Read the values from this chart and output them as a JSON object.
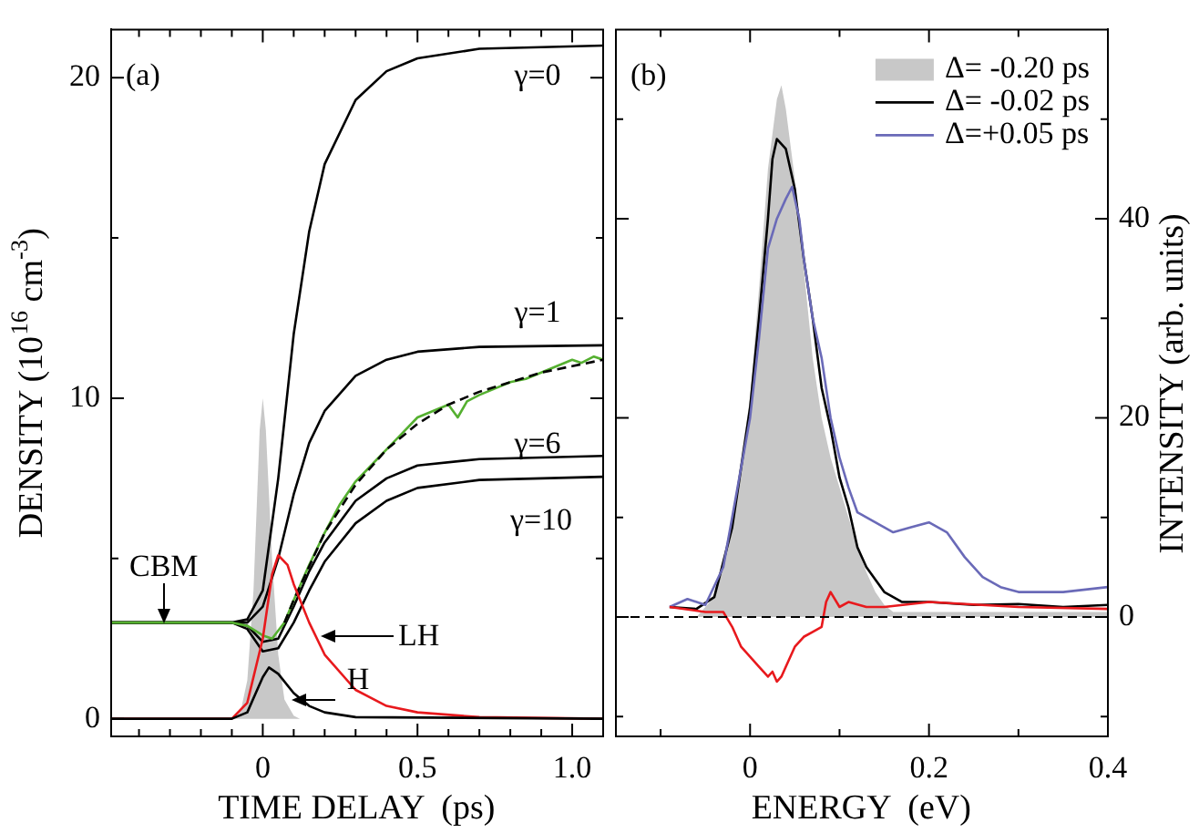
{
  "chart_data": [
    {
      "type": "line",
      "xlabel": "TIME DELAY  (ps)",
      "ylabel": "DENSITY (10$^{16}$ cm$^{-3}$)",
      "xlim": [
        -0.49,
        1.1
      ],
      "xticks": [
        {
          "value": -0.4,
          "label": null
        },
        {
          "value": -0.3,
          "label": null
        },
        {
          "value": -0.2,
          "label": null
        },
        {
          "value": -0.1,
          "label": null
        },
        0,
        {
          "value": 0.1,
          "label": null
        },
        {
          "value": 0.2,
          "label": null
        },
        {
          "value": 0.3,
          "label": null
        },
        {
          "value": 0.4,
          "label": null
        },
        0.5,
        {
          "value": 0.6,
          "label": null
        },
        {
          "value": 0.7,
          "label": null
        },
        {
          "value": 0.8,
          "label": null
        },
        {
          "value": 0.9,
          "label": null
        },
        {
          "value": 1,
          "label": "1.0"
        }
      ],
      "ylim": [
        -0.55,
        21.5
      ],
      "yticks": [
        0,
        {
          "value": 5,
          "label": null
        },
        10,
        {
          "value": 15,
          "label": null
        },
        20
      ],
      "legend": false,
      "annotations": [
        "(a)",
        "γ=0",
        "γ=1",
        "γ=6",
        "γ=10",
        {
          "text": "CBM",
          "x": -0.32,
          "y": 3
        },
        {
          "text": "LH",
          "x": 0.19,
          "y": 2.55
        },
        {
          "text": "H",
          "x": 0.095,
          "y": 0.6
        }
      ],
      "series": [
        {
          "type": "area",
          "color": "#c8c8c8",
          "x": [
            -0.1,
            -0.07,
            -0.05,
            -0.03,
            -0.02,
            -0.01,
            0,
            0.01,
            0.02,
            0.03,
            0.05,
            0.07,
            0.1,
            0.12
          ],
          "values": [
            0,
            0.3,
            1.2,
            4,
            6.5,
            9,
            10,
            9,
            7,
            5,
            2,
            0.6,
            0.1,
            0
          ]
        },
        {
          "color": "#000000",
          "x": [
            -0.49,
            -0.1,
            -0.05,
            0,
            0.05,
            0.1,
            0.15,
            0.2,
            0.3,
            0.4,
            0.5,
            0.7,
            1.1
          ],
          "values": [
            3,
            3,
            3.1,
            4,
            7.5,
            12,
            15.2,
            17.3,
            19.3,
            20.2,
            20.6,
            20.9,
            21
          ]
        },
        {
          "color": "#000000",
          "x": [
            -0.49,
            -0.1,
            -0.05,
            0,
            0.05,
            0.1,
            0.15,
            0.2,
            0.3,
            0.4,
            0.5,
            0.7,
            1.1
          ],
          "values": [
            3,
            3,
            3,
            3.5,
            5,
            7,
            8.6,
            9.6,
            10.7,
            11.2,
            11.45,
            11.6,
            11.65
          ]
        },
        {
          "color": "#000000",
          "x": [
            -0.49,
            -0.1,
            -0.05,
            0,
            0.05,
            0.1,
            0.15,
            0.2,
            0.3,
            0.4,
            0.5,
            0.7,
            1.1
          ],
          "values": [
            3,
            3,
            2.9,
            2.4,
            2.5,
            3.5,
            4.6,
            5.5,
            6.8,
            7.5,
            7.9,
            8.1,
            8.2
          ]
        },
        {
          "color": "#000000",
          "x": [
            -0.49,
            -0.1,
            -0.05,
            0,
            0.05,
            0.1,
            0.15,
            0.2,
            0.3,
            0.4,
            0.5,
            0.7,
            1.1
          ],
          "values": [
            3,
            3,
            2.8,
            2.1,
            2.2,
            3,
            4,
            4.9,
            6.1,
            6.8,
            7.2,
            7.45,
            7.55
          ]
        },
        {
          "color": "#55b030",
          "x": [
            -0.49,
            -0.3,
            -0.1,
            -0.05,
            0,
            0.03,
            0.07,
            0.1,
            0.15,
            0.2,
            0.25,
            0.3,
            0.35,
            0.4,
            0.45,
            0.5,
            0.55,
            0.6,
            0.63,
            0.66,
            0.7,
            0.75,
            0.8,
            0.85,
            0.9,
            0.95,
            1,
            1.03,
            1.07,
            1.1
          ],
          "values": [
            3,
            3,
            3,
            2.9,
            2.6,
            2.5,
            3,
            3.7,
            4.8,
            5.8,
            6.7,
            7.4,
            7.9,
            8.4,
            8.9,
            9.4,
            9.6,
            9.8,
            9.4,
            9.9,
            10.1,
            10.3,
            10.5,
            10.6,
            10.8,
            11,
            11.2,
            11.1,
            11.3,
            11.2
          ]
        },
        {
          "color": "#000000",
          "line_style": "dashed",
          "x": [
            0.07,
            0.1,
            0.2,
            0.3,
            0.4,
            0.5,
            0.6,
            0.7,
            0.8,
            0.9,
            1,
            1.1
          ],
          "values": [
            3,
            3.7,
            5.8,
            7.3,
            8.4,
            9.2,
            9.8,
            10.2,
            10.5,
            10.8,
            11,
            11.2
          ]
        },
        {
          "color": "#e8191d",
          "x": [
            -0.49,
            -0.1,
            -0.05,
            0,
            0.03,
            0.05,
            0.08,
            0.1,
            0.15,
            0.2,
            0.3,
            0.4,
            0.5,
            0.7,
            1.1
          ],
          "values": [
            0,
            0,
            0.5,
            2.5,
            4.5,
            5.1,
            4.8,
            4.2,
            3,
            2,
            0.9,
            0.4,
            0.2,
            0.05,
            0
          ]
        },
        {
          "color": "#000000",
          "x": [
            -0.49,
            -0.1,
            -0.05,
            0,
            0.02,
            0.05,
            0.1,
            0.15,
            0.2,
            0.3,
            1.1
          ],
          "values": [
            0,
            0,
            0.2,
            1.3,
            1.6,
            1.4,
            0.8,
            0.4,
            0.2,
            0.05,
            0
          ]
        }
      ]
    },
    {
      "type": "line",
      "xlabel": "ENERGY  (eV)",
      "y2label": "INTENSITY (arb. units)",
      "xlim": [
        -0.15,
        0.4
      ],
      "xticks": [
        {
          "value": -0.1,
          "label": null
        },
        0,
        {
          "value": 0.1,
          "label": null
        },
        0.2,
        {
          "value": 0.3,
          "label": null
        },
        0.4
      ],
      "y2lim": [
        -12,
        59
      ],
      "y2ticks": [
        {
          "value": -10,
          "label": null
        },
        0,
        {
          "value": 10,
          "label": null
        },
        20,
        {
          "value": 30,
          "label": null
        },
        40,
        {
          "value": 50,
          "label": null
        }
      ],
      "legend": "top right",
      "annotations": [
        "(b)"
      ],
      "ref_lines": [
        {
          "axis": "y2",
          "value": 0,
          "color": "#000000",
          "line_style": "dashed"
        }
      ],
      "series": [
        {
          "type": "area",
          "axis": "y2",
          "name": "Δ= -0.20 ps",
          "color": "#c8c8c8",
          "x": [
            -0.06,
            -0.04,
            -0.02,
            0,
            0.01,
            0.02,
            0.03,
            0.035,
            0.04,
            0.05,
            0.06,
            0.07,
            0.08,
            0.09,
            0.1,
            0.11,
            0.12,
            0.13,
            0.14,
            0.15,
            0.16,
            0.2,
            0.3,
            0.4
          ],
          "values": [
            0,
            2,
            10,
            22,
            33,
            45,
            52,
            53.4,
            51,
            44,
            35,
            26,
            20,
            16,
            13,
            10,
            7,
            4.5,
            2.5,
            1.2,
            0.5,
            0.5,
            0.5,
            0.5
          ]
        },
        {
          "axis": "y2",
          "name": "Δ= -0.02 ps",
          "color": "#000000",
          "x": [
            -0.09,
            -0.06,
            -0.04,
            -0.02,
            0,
            0.01,
            0.02,
            0.025,
            0.03,
            0.04,
            0.05,
            0.06,
            0.07,
            0.08,
            0.09,
            0.1,
            0.11,
            0.12,
            0.13,
            0.15,
            0.17,
            0.2,
            0.25,
            0.3,
            0.35,
            0.4
          ],
          "values": [
            1,
            0.8,
            2,
            9,
            21,
            30,
            40,
            46,
            48,
            47,
            43,
            36,
            30,
            23,
            19,
            14,
            11,
            7,
            5,
            2.5,
            1.5,
            1.5,
            1.2,
            1.3,
            1,
            1.2
          ]
        },
        {
          "axis": "y2",
          "name": "Δ=+0.05 ps",
          "color": "#6a6ab8",
          "x": [
            -0.09,
            -0.07,
            -0.05,
            -0.03,
            -0.01,
            0,
            0.01,
            0.02,
            0.03,
            0.04,
            0.047,
            0.055,
            0.06,
            0.07,
            0.075,
            0.08,
            0.09,
            0.1,
            0.11,
            0.12,
            0.14,
            0.16,
            0.18,
            0.2,
            0.22,
            0.24,
            0.26,
            0.28,
            0.3,
            0.35,
            0.4
          ],
          "values": [
            1,
            1.8,
            1.2,
            5,
            15,
            20,
            28,
            37,
            40,
            42,
            43.2,
            40,
            36,
            30,
            28,
            26,
            20,
            16,
            13,
            10.5,
            9.5,
            8.5,
            9,
            9.5,
            8.5,
            6,
            4,
            3,
            2.5,
            2.5,
            3
          ]
        },
        {
          "axis": "y2",
          "color": "#e8191d",
          "x": [
            -0.09,
            -0.05,
            -0.03,
            -0.02,
            -0.01,
            0,
            0.01,
            0.02,
            0.025,
            0.03,
            0.035,
            0.04,
            0.05,
            0.06,
            0.07,
            0.08,
            0.085,
            0.09,
            0.1,
            0.11,
            0.13,
            0.15,
            0.2,
            0.3,
            0.4
          ],
          "values": [
            1,
            0.5,
            0.5,
            -1,
            -3,
            -4,
            -5,
            -6,
            -5.5,
            -6.5,
            -6,
            -5,
            -3,
            -2,
            -1.5,
            -1,
            1.5,
            2.5,
            1,
            1.5,
            1,
            1,
            1.5,
            1,
            0.8
          ]
        }
      ]
    }
  ]
}
